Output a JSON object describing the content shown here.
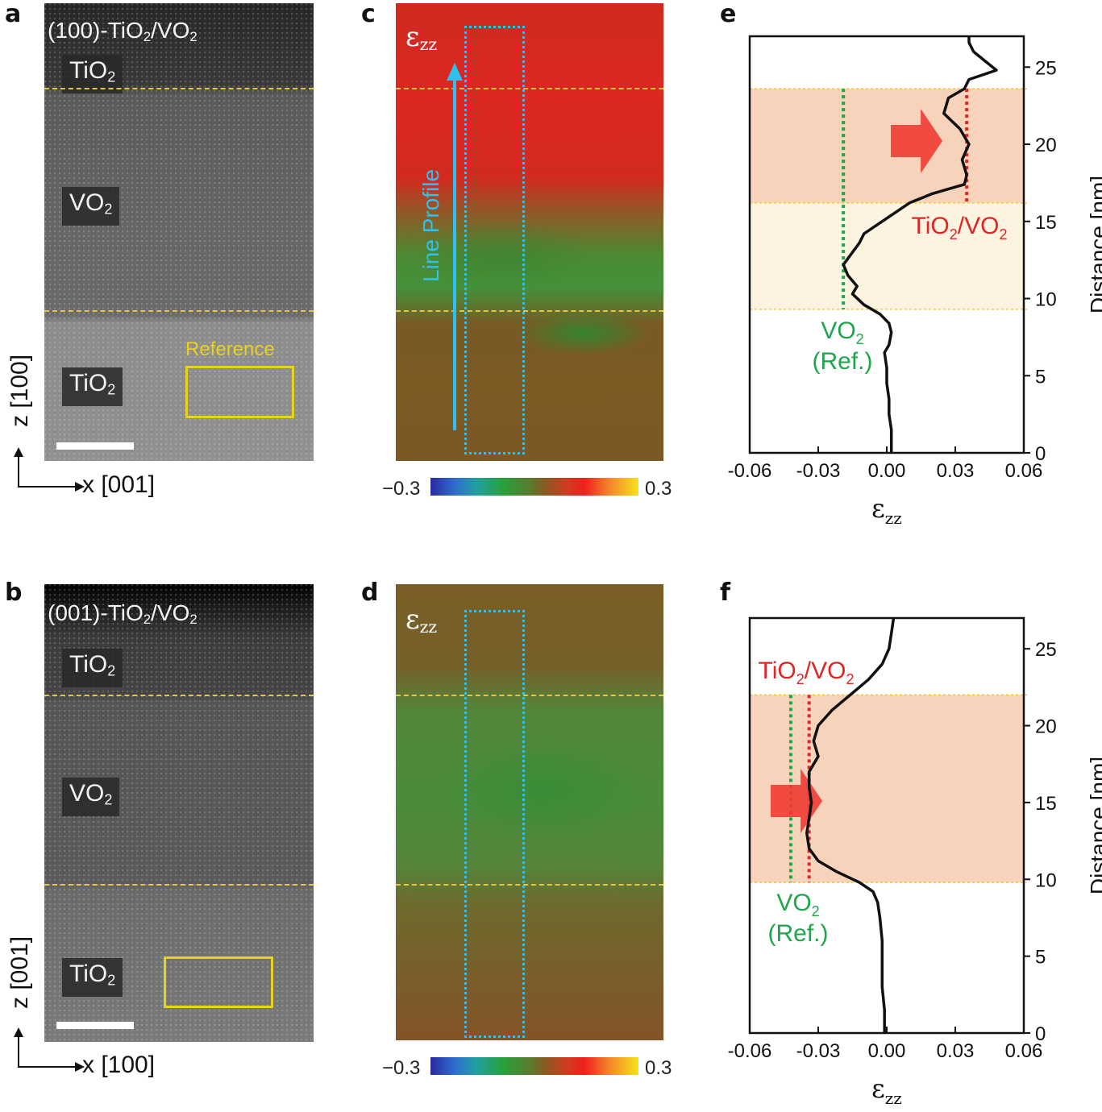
{
  "panels": {
    "a": {
      "letter": "a",
      "title_pre": "(100)-TiO",
      "title_mid": "2",
      "title_post": "/VO",
      "title_end": "2",
      "top_layer": "TiO",
      "top_sub": "2",
      "mid_layer": "VO",
      "mid_sub": "2",
      "bottom_layer": "TiO",
      "bottom_sub": "2",
      "reference_label": "Reference",
      "axis_vertical": "z [100]",
      "axis_horizontal": "x [001]"
    },
    "b": {
      "letter": "b",
      "title_pre": "(001)-TiO",
      "title_mid": "2",
      "title_post": "/VO",
      "title_end": "2",
      "top_layer": "TiO",
      "top_sub": "2",
      "mid_layer": "VO",
      "mid_sub": "2",
      "bottom_layer": "TiO",
      "bottom_sub": "2",
      "axis_vertical": "z [001]",
      "axis_horizontal": "x [100]"
    },
    "c": {
      "letter": "c",
      "eps": "ε",
      "eps_sub": "zz",
      "line_profile": "Line Profile",
      "cbar_min": "−0.3",
      "cbar_max": "0.3"
    },
    "d": {
      "letter": "d",
      "eps": "ε",
      "eps_sub": "zz",
      "cbar_min": "−0.3",
      "cbar_max": "0.3"
    },
    "e": {
      "letter": "e"
    },
    "f": {
      "letter": "f"
    }
  },
  "chart_data": [
    {
      "panel": "e",
      "type": "line",
      "xlabel": "εzz",
      "ylabel": "Distance [nm]",
      "xlim": [
        -0.06,
        0.06
      ],
      "ylim": [
        0,
        27
      ],
      "xticks": [
        "-0.06",
        "-0.03",
        "0.00",
        "0.03",
        "0.06"
      ],
      "yticks": [
        "0",
        "5",
        "10",
        "15",
        "20",
        "25"
      ],
      "annotations": {
        "ref_label_1": "VO",
        "ref_label_1_sub": "2",
        "ref_label_2": "(Ref.)",
        "film_label": "TiO",
        "film_label_sub": "2",
        "film_label_post": "/VO",
        "film_label_end": "2"
      },
      "bands": [
        {
          "from": 16.2,
          "to": 23.6,
          "color": "#f7d3bc"
        },
        {
          "from": 9.3,
          "to": 16.2,
          "color": "#fdf3e1"
        }
      ],
      "reference_line_x": -0.019,
      "film_line_x": 0.035,
      "colors": {
        "ref": "#1fa64a",
        "film": "#e02525",
        "curve": "#111111",
        "arrow": "#ef3b33"
      },
      "series": [
        {
          "x": [
            0.002,
            0.002,
            0.001,
            0.001,
            0.0,
            0.0,
            -0.001,
            0.001,
            0.002,
            0.001,
            -0.003,
            -0.01,
            -0.015,
            -0.013,
            -0.017,
            -0.019,
            -0.015,
            -0.012,
            -0.01,
            0.0,
            0.01,
            0.02,
            0.034,
            0.035,
            0.033,
            0.036,
            0.032,
            0.025,
            0.027,
            0.034,
            0.036,
            0.048,
            0.043,
            0.038,
            0.036,
            0.036
          ],
          "y": [
            0.0,
            1.5,
            2.5,
            3.5,
            4.5,
            5.5,
            6.5,
            7.0,
            7.8,
            8.4,
            9.0,
            9.6,
            10.3,
            10.8,
            11.5,
            12.2,
            13.0,
            13.6,
            14.2,
            15.2,
            16.2,
            16.8,
            17.4,
            18.0,
            19.0,
            20.0,
            21.0,
            22.0,
            23.0,
            23.6,
            24.2,
            24.8,
            25.4,
            26.0,
            26.6,
            27.0
          ]
        }
      ]
    },
    {
      "panel": "f",
      "type": "line",
      "xlabel": "εzz",
      "ylabel": "Distance [nm]",
      "xlim": [
        -0.06,
        0.06
      ],
      "ylim": [
        0,
        27
      ],
      "xticks": [
        "-0.06",
        "-0.03",
        "0.00",
        "0.03",
        "0.06"
      ],
      "yticks": [
        "0",
        "5",
        "10",
        "15",
        "20",
        "25"
      ],
      "annotations": {
        "ref_label_1": "VO",
        "ref_label_1_sub": "2",
        "ref_label_2": "(Ref.)",
        "film_label": "TiO",
        "film_label_sub": "2",
        "film_label_post": "/VO",
        "film_label_end": "2"
      },
      "bands": [
        {
          "from": 9.8,
          "to": 22.0,
          "color": "#f7d3bc"
        }
      ],
      "reference_line_x": -0.042,
      "film_line_x": -0.034,
      "colors": {
        "ref": "#1fa64a",
        "film": "#e02525",
        "curve": "#111111",
        "arrow": "#ef3b33"
      },
      "series": [
        {
          "x": [
            -0.001,
            -0.001,
            -0.002,
            -0.002,
            -0.002,
            -0.003,
            -0.004,
            -0.006,
            -0.012,
            -0.022,
            -0.03,
            -0.034,
            -0.035,
            -0.034,
            -0.033,
            -0.034,
            -0.034,
            -0.03,
            -0.032,
            -0.03,
            -0.024,
            -0.016,
            -0.008,
            -0.002,
            0.001,
            0.002,
            0.003
          ],
          "y": [
            0.0,
            1.5,
            3.0,
            4.5,
            6.0,
            7.5,
            8.5,
            9.2,
            9.8,
            10.5,
            11.2,
            12.0,
            13.0,
            14.0,
            15.0,
            16.0,
            17.0,
            18.0,
            19.0,
            20.0,
            21.0,
            22.0,
            23.0,
            24.0,
            25.0,
            26.0,
            27.0
          ]
        }
      ]
    }
  ]
}
